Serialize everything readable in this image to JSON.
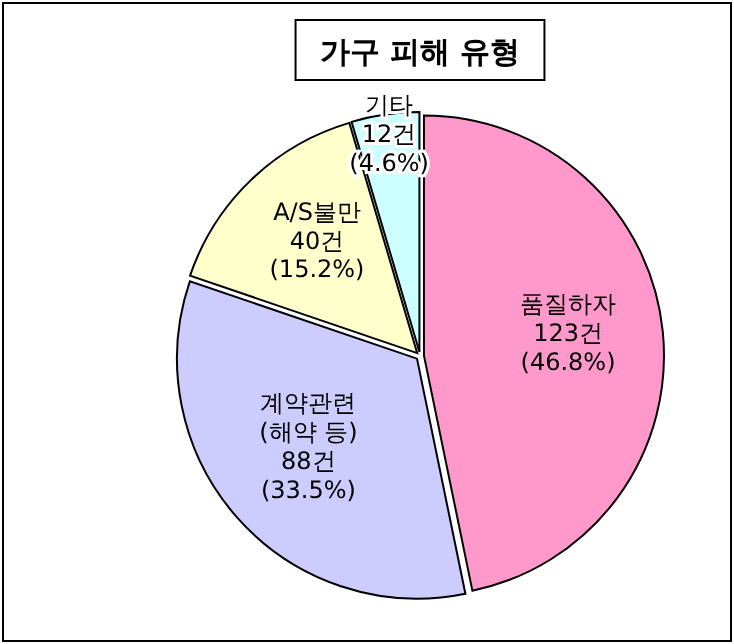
{
  "chart_data": {
    "type": "pie",
    "title": "가구 피해 유형",
    "categories": [
      "품질하자",
      "계약관련\n(해약 등)",
      "A/S불만",
      "기타"
    ],
    "values": [
      123,
      88,
      40,
      12
    ],
    "colors": [
      "#ff99cc",
      "#ccccff",
      "#ffffcc",
      "#ccffff"
    ],
    "value_labels": [
      "123건\n(46.8%)",
      "88건\n(33.5%)",
      "40건\n(15.2%)",
      "12건\n(4.6%)"
    ]
  }
}
